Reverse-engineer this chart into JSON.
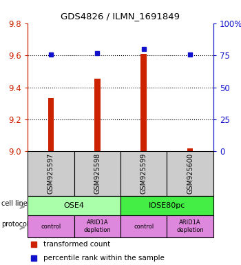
{
  "title": "GDS4826 / ILMN_1691849",
  "samples": [
    "GSM925597",
    "GSM925598",
    "GSM925599",
    "GSM925600"
  ],
  "transformed_counts": [
    9.335,
    9.455,
    9.61,
    9.02
  ],
  "percentile_ranks_pct": [
    76,
    77,
    80,
    76
  ],
  "ylim_left": [
    9.0,
    9.8
  ],
  "ylim_right": [
    0,
    100
  ],
  "yticks_left": [
    9.0,
    9.2,
    9.4,
    9.6,
    9.8
  ],
  "yticks_right": [
    0,
    25,
    50,
    75,
    100
  ],
  "ytick_labels_right": [
    "0",
    "25",
    "50",
    "75",
    "100%"
  ],
  "cell_line_colors": [
    "#aaffaa",
    "#44ee44"
  ],
  "protocol_labels": [
    "control",
    "ARID1A\ndepletion",
    "control",
    "ARID1A\ndepletion"
  ],
  "protocol_color": "#dd88dd",
  "bar_color": "#cc2200",
  "dot_color": "#1111cc",
  "sample_box_color": "#cccccc",
  "left_axis_color": "#cc2200",
  "right_axis_color": "#1111cc"
}
